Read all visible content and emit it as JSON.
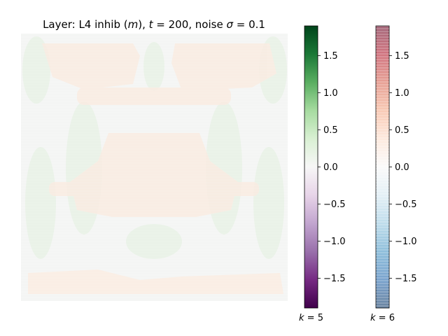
{
  "chart_data": {
    "type": "heatmap",
    "title": "Layer: L4 inhib (m), t = 200, noise σ = 0.1",
    "title_parts": {
      "prefix": "Layer: L4 inhib (",
      "var": "m",
      "mid1": "), ",
      "t_sym": "t",
      "t_eq": " = 200, noise ",
      "sigma_sym": "σ",
      "sigma_eq": " = 0.1"
    },
    "grid": false,
    "axes_visible": false,
    "image_description_regions": [
      {
        "channel": "k=5",
        "sign": "positive",
        "region": "vertical bands left and right",
        "approx_value": 0.06
      },
      {
        "channel": "k=6",
        "sign": "positive",
        "region": "top corners, center block, bottom bars",
        "approx_value": 0.08
      }
    ],
    "colorbars": [
      {
        "name": "k = 5",
        "label_sym": "k",
        "label_eq": " = 5",
        "colormap": "PRGn",
        "range": [
          -1.9,
          1.9
        ],
        "ticks": [
          1.5,
          1.0,
          0.5,
          0.0,
          -0.5,
          -1.0,
          -1.5
        ],
        "tick_labels": [
          "1.5",
          "1.0",
          "0.5",
          "0.0",
          "−0.5",
          "−1.0",
          "−1.5"
        ]
      },
      {
        "name": "k = 6",
        "label_sym": "k",
        "label_eq": " = 6",
        "colormap": "RdBu_r",
        "alpha": 0.6,
        "range": [
          -1.9,
          1.9
        ],
        "ticks": [
          1.5,
          1.0,
          0.5,
          0.0,
          -0.5,
          -1.0,
          -1.5
        ],
        "tick_labels": [
          "1.5",
          "1.0",
          "0.5",
          "0.0",
          "−0.5",
          "−1.0",
          "−1.5"
        ]
      }
    ]
  },
  "colors": {
    "background": "#f4f5f4",
    "green_tint": "#e8f1e6",
    "orange_tint": "#f9ece3"
  }
}
